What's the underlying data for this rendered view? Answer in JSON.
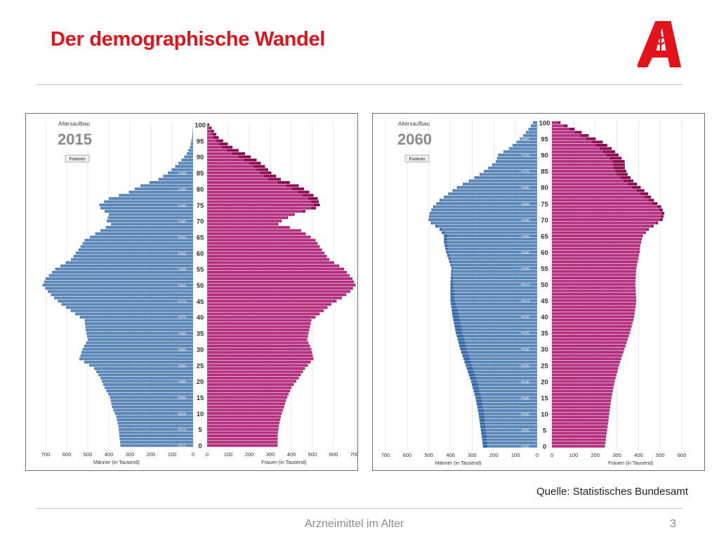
{
  "slide": {
    "title": "Der demographische Wandel",
    "source": "Quelle: Statistisches Bundesamt",
    "footer": "Arzneimittel im  Alter",
    "page_number": "3"
  },
  "colors": {
    "title": "#e2131b",
    "men": "#5b86b8",
    "men_dark": "#3a6aa6",
    "women": "#b5307f",
    "women_dark": "#8c0d52",
    "logo": "#e2131b"
  },
  "icons": {
    "logo": "apotheke-a-logo-icon"
  },
  "chart_data": [
    {
      "type": "population-pyramid",
      "title": "Altersaufbau",
      "year": "2015",
      "button": "Fixieren",
      "xlabel_left": "Männer (in Tausend)",
      "xlabel_right": "Frauen (in Tausend)",
      "xticks": [
        700,
        600,
        500,
        400,
        300,
        200,
        100,
        0
      ],
      "xticks_right": [
        0,
        100,
        200,
        300,
        400,
        500,
        600,
        700
      ],
      "xlim": [
        0,
        700
      ],
      "yticks": [
        0,
        5,
        10,
        15,
        20,
        25,
        30,
        35,
        40,
        45,
        50,
        55,
        60,
        65,
        70,
        75,
        80,
        85,
        90,
        95,
        100
      ],
      "ylim": [
        0,
        100
      ],
      "birth_year_labels": [
        {
          "age": 0,
          "year": "2015"
        },
        {
          "age": 5,
          "year": "2010"
        },
        {
          "age": 10,
          "year": "2005"
        },
        {
          "age": 15,
          "year": "2000"
        },
        {
          "age": 20,
          "year": "1995"
        },
        {
          "age": 25,
          "year": "1990"
        },
        {
          "age": 30,
          "year": "1985"
        },
        {
          "age": 35,
          "year": "1980"
        },
        {
          "age": 40,
          "year": "1975"
        },
        {
          "age": 45,
          "year": "1970"
        },
        {
          "age": 50,
          "year": "1965"
        },
        {
          "age": 55,
          "year": "1960"
        },
        {
          "age": 60,
          "year": "1955"
        },
        {
          "age": 65,
          "year": "1950"
        },
        {
          "age": 70,
          "year": "1945"
        },
        {
          "age": 75,
          "year": "1940"
        },
        {
          "age": 80,
          "year": "1935"
        },
        {
          "age": 85,
          "year": "1930"
        }
      ],
      "series": [
        {
          "name": "Männer",
          "anchors": [
            [
              0,
              345
            ],
            [
              3,
              350
            ],
            [
              6,
              355
            ],
            [
              9,
              365
            ],
            [
              12,
              385
            ],
            [
              15,
              395
            ],
            [
              18,
              420
            ],
            [
              21,
              440
            ],
            [
              24,
              470
            ],
            [
              27,
              540
            ],
            [
              30,
              525
            ],
            [
              33,
              500
            ],
            [
              36,
              510
            ],
            [
              39,
              515
            ],
            [
              41,
              560
            ],
            [
              44,
              625
            ],
            [
              46,
              660
            ],
            [
              48,
              690
            ],
            [
              50,
              715
            ],
            [
              52,
              700
            ],
            [
              55,
              655
            ],
            [
              58,
              580
            ],
            [
              61,
              545
            ],
            [
              64,
              515
            ],
            [
              67,
              440
            ],
            [
              69,
              390
            ],
            [
              70,
              410
            ],
            [
              72,
              400
            ],
            [
              74,
              440
            ],
            [
              75,
              445
            ],
            [
              77,
              400
            ],
            [
              79,
              305
            ],
            [
              81,
              250
            ],
            [
              83,
              165
            ],
            [
              85,
              120
            ],
            [
              87,
              85
            ],
            [
              89,
              55
            ],
            [
              91,
              30
            ],
            [
              93,
              15
            ],
            [
              96,
              5
            ],
            [
              100,
              0
            ]
          ]
        },
        {
          "name": "Frauen",
          "anchors": [
            [
              0,
              335
            ],
            [
              3,
              335
            ],
            [
              6,
              340
            ],
            [
              9,
              350
            ],
            [
              12,
              365
            ],
            [
              15,
              380
            ],
            [
              18,
              400
            ],
            [
              21,
              435
            ],
            [
              24,
              465
            ],
            [
              27,
              505
            ],
            [
              30,
              495
            ],
            [
              33,
              475
            ],
            [
              36,
              485
            ],
            [
              39,
              495
            ],
            [
              41,
              535
            ],
            [
              44,
              590
            ],
            [
              46,
              640
            ],
            [
              48,
              680
            ],
            [
              50,
              705
            ],
            [
              52,
              690
            ],
            [
              55,
              650
            ],
            [
              58,
              580
            ],
            [
              61,
              545
            ],
            [
              64,
              515
            ],
            [
              67,
              445
            ],
            [
              69,
              335
            ],
            [
              70,
              350
            ],
            [
              72,
              410
            ],
            [
              74,
              495
            ],
            [
              75,
              505
            ],
            [
              77,
              480
            ],
            [
              79,
              430
            ],
            [
              81,
              375
            ],
            [
              83,
              290
            ],
            [
              85,
              250
            ],
            [
              87,
              220
            ],
            [
              89,
              175
            ],
            [
              91,
              120
            ],
            [
              93,
              70
            ],
            [
              96,
              30
            ],
            [
              100,
              5
            ]
          ],
          "extra": [
            [
              0,
              0
            ],
            [
              65,
              0
            ],
            [
              72,
              5
            ],
            [
              75,
              30
            ],
            [
              77,
              45
            ],
            [
              79,
              55
            ],
            [
              81,
              60
            ],
            [
              83,
              60
            ],
            [
              85,
              55
            ],
            [
              87,
              55
            ],
            [
              89,
              60
            ],
            [
              91,
              60
            ],
            [
              93,
              50
            ],
            [
              96,
              25
            ],
            [
              100,
              5
            ]
          ]
        }
      ]
    },
    {
      "type": "population-pyramid",
      "title": "Altersaufbau",
      "year": "2060",
      "button": "Fixieren",
      "xlabel_left": "Männer (in Tausend)",
      "xlabel_right": "Frauen (in Tausend)",
      "xticks": [
        700,
        600,
        500,
        400,
        300,
        200,
        100,
        0
      ],
      "xticks_right": [
        0,
        100,
        200,
        300,
        400,
        500,
        600
      ],
      "xlim": [
        0,
        700
      ],
      "yticks": [
        0,
        5,
        10,
        15,
        20,
        25,
        30,
        35,
        40,
        45,
        50,
        55,
        60,
        65,
        70,
        75,
        80,
        85,
        90,
        95,
        100
      ],
      "ylim": [
        0,
        100
      ],
      "birth_year_labels": [
        {
          "age": 0,
          "year": "2060"
        },
        {
          "age": 5,
          "year": "2055"
        },
        {
          "age": 10,
          "year": "2050"
        },
        {
          "age": 15,
          "year": "2045"
        },
        {
          "age": 20,
          "year": "2040"
        },
        {
          "age": 25,
          "year": "2035"
        },
        {
          "age": 30,
          "year": "2030"
        },
        {
          "age": 35,
          "year": "2025"
        },
        {
          "age": 40,
          "year": "2020"
        },
        {
          "age": 45,
          "year": "2015"
        },
        {
          "age": 50,
          "year": "2010"
        },
        {
          "age": 55,
          "year": "2005"
        },
        {
          "age": 60,
          "year": "2000"
        },
        {
          "age": 65,
          "year": "1995"
        },
        {
          "age": 70,
          "year": "1990"
        },
        {
          "age": 75,
          "year": "1985"
        },
        {
          "age": 80,
          "year": "1980"
        },
        {
          "age": 85,
          "year": "1975"
        },
        {
          "age": 90,
          "year": "1970"
        },
        {
          "age": 95,
          "year": "1965"
        }
      ],
      "series": [
        {
          "name": "Männer",
          "anchors": [
            [
              0,
              250
            ],
            [
              5,
              260
            ],
            [
              10,
              270
            ],
            [
              15,
              285
            ],
            [
              20,
              305
            ],
            [
              25,
              330
            ],
            [
              30,
              355
            ],
            [
              35,
              375
            ],
            [
              40,
              390
            ],
            [
              45,
              400
            ],
            [
              50,
              400
            ],
            [
              55,
              395
            ],
            [
              60,
              420
            ],
            [
              63,
              430
            ],
            [
              65,
              430
            ],
            [
              67,
              450
            ],
            [
              69,
              490
            ],
            [
              70,
              500
            ],
            [
              72,
              495
            ],
            [
              74,
              480
            ],
            [
              76,
              450
            ],
            [
              78,
              410
            ],
            [
              80,
              370
            ],
            [
              82,
              315
            ],
            [
              84,
              265
            ],
            [
              86,
              225
            ],
            [
              88,
              190
            ],
            [
              90,
              180
            ],
            [
              92,
              130
            ],
            [
              94,
              95
            ],
            [
              96,
              65
            ],
            [
              98,
              40
            ],
            [
              100,
              20
            ]
          ],
          "dark": [
            [
              0,
              20
            ],
            [
              10,
              25
            ],
            [
              20,
              28
            ],
            [
              30,
              30
            ],
            [
              40,
              30
            ],
            [
              45,
              20
            ],
            [
              50,
              12
            ],
            [
              55,
              5
            ],
            [
              60,
              10
            ],
            [
              65,
              15
            ],
            [
              70,
              5
            ],
            [
              100,
              0
            ]
          ]
        },
        {
          "name": "Frauen",
          "anchors": [
            [
              0,
              245
            ],
            [
              5,
              255
            ],
            [
              10,
              265
            ],
            [
              15,
              275
            ],
            [
              20,
              290
            ],
            [
              25,
              310
            ],
            [
              30,
              335
            ],
            [
              35,
              360
            ],
            [
              40,
              380
            ],
            [
              45,
              390
            ],
            [
              50,
              385
            ],
            [
              55,
              390
            ],
            [
              60,
              405
            ],
            [
              63,
              410
            ],
            [
              65,
              415
            ],
            [
              67,
              440
            ],
            [
              69,
              480
            ],
            [
              70,
              500
            ],
            [
              72,
              505
            ],
            [
              74,
              485
            ],
            [
              76,
              445
            ],
            [
              78,
              410
            ],
            [
              80,
              370
            ],
            [
              82,
              330
            ],
            [
              84,
              300
            ],
            [
              86,
              285
            ],
            [
              88,
              280
            ],
            [
              90,
              250
            ],
            [
              92,
              220
            ],
            [
              94,
              185
            ],
            [
              96,
              130
            ],
            [
              98,
              80
            ],
            [
              100,
              30
            ]
          ],
          "extra": [
            [
              0,
              0
            ],
            [
              62,
              0
            ],
            [
              66,
              6
            ],
            [
              69,
              10
            ],
            [
              72,
              14
            ],
            [
              75,
              22
            ],
            [
              78,
              34
            ],
            [
              80,
              40
            ],
            [
              82,
              46
            ],
            [
              84,
              50
            ],
            [
              86,
              52
            ],
            [
              88,
              56
            ],
            [
              90,
              58
            ],
            [
              92,
              56
            ],
            [
              94,
              50
            ],
            [
              96,
              40
            ],
            [
              98,
              25
            ],
            [
              100,
              10
            ]
          ]
        }
      ]
    }
  ]
}
